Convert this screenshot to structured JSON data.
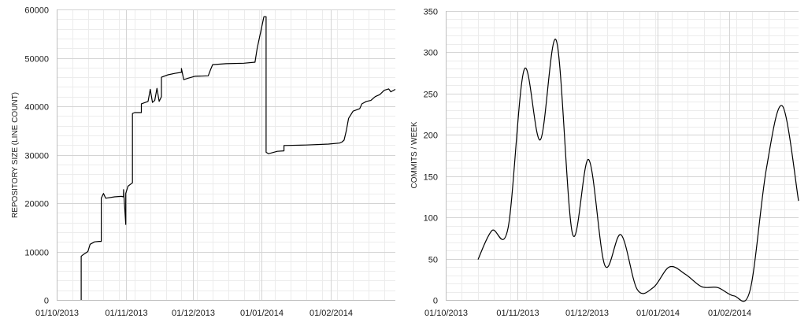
{
  "chart_data": [
    {
      "type": "line",
      "title": "",
      "xlabel": "",
      "ylabel": "REPOSITORY SIZE (LINE COUNT)",
      "ylim": [
        0,
        60000
      ],
      "yticks": [
        0,
        10000,
        20000,
        30000,
        40000,
        50000,
        60000
      ],
      "xlim": [
        "2013-10-01",
        "2014-03-02"
      ],
      "xticks": [
        "01/10/2013",
        "01/11/2013",
        "01/12/2013",
        "01/01/2014",
        "01/02/2014"
      ],
      "grid": true,
      "series": [
        {
          "color": "#000000",
          "points": [
            [
              "2013-10-12",
              0
            ],
            [
              "2013-10-12",
              9000
            ],
            [
              "2013-10-13",
              9400
            ],
            [
              "2013-10-15",
              10000
            ],
            [
              "2013-10-16",
              11500
            ],
            [
              "2013-10-18",
              12000
            ],
            [
              "2013-10-20",
              12100
            ],
            [
              "2013-10-21",
              12100
            ],
            [
              "2013-10-21",
              21000
            ],
            [
              "2013-10-22",
              22000
            ],
            [
              "2013-10-23",
              21000
            ],
            [
              "2013-10-27",
              21300
            ],
            [
              "2013-10-30",
              21400
            ],
            [
              "2013-10-31",
              21300
            ],
            [
              "2013-10-31",
              22800
            ],
            [
              "2013-11-01",
              15600
            ],
            [
              "2013-11-01",
              22000
            ],
            [
              "2013-11-02",
              23500
            ],
            [
              "2013-11-04",
              24200
            ],
            [
              "2013-11-04",
              38500
            ],
            [
              "2013-11-05",
              38700
            ],
            [
              "2013-11-08",
              38700
            ],
            [
              "2013-11-08",
              40500
            ],
            [
              "2013-11-11",
              41000
            ],
            [
              "2013-11-12",
              43500
            ],
            [
              "2013-11-13",
              40800
            ],
            [
              "2013-11-14",
              41200
            ],
            [
              "2013-11-15",
              43700
            ],
            [
              "2013-11-16",
              41000
            ],
            [
              "2013-11-17",
              42000
            ],
            [
              "2013-11-17",
              46000
            ],
            [
              "2013-11-20",
              46500
            ],
            [
              "2013-11-23",
              46800
            ],
            [
              "2013-11-26",
              47000
            ],
            [
              "2013-11-26",
              47800
            ],
            [
              "2013-11-27",
              45500
            ],
            [
              "2013-11-29",
              45800
            ],
            [
              "2013-12-02",
              46200
            ],
            [
              "2013-12-08",
              46300
            ],
            [
              "2013-12-09",
              47500
            ],
            [
              "2013-12-10",
              48600
            ],
            [
              "2013-12-16",
              48800
            ],
            [
              "2013-12-24",
              48900
            ],
            [
              "2013-12-29",
              49100
            ],
            [
              "2013-12-30",
              52000
            ],
            [
              "2014-01-02",
              58500
            ],
            [
              "2014-01-03",
              58500
            ],
            [
              "2014-01-03",
              30500
            ],
            [
              "2014-01-04",
              30200
            ],
            [
              "2014-01-08",
              30700
            ],
            [
              "2014-01-11",
              30800
            ],
            [
              "2014-01-11",
              31900
            ],
            [
              "2014-01-21",
              32000
            ],
            [
              "2014-01-31",
              32200
            ],
            [
              "2014-02-05",
              32400
            ],
            [
              "2014-02-06",
              32600
            ],
            [
              "2014-02-07",
              33000
            ],
            [
              "2014-02-08",
              35000
            ],
            [
              "2014-02-09",
              37500
            ],
            [
              "2014-02-11",
              39000
            ],
            [
              "2014-02-14",
              39500
            ],
            [
              "2014-02-15",
              40500
            ],
            [
              "2014-02-17",
              41000
            ],
            [
              "2014-02-19",
              41200
            ],
            [
              "2014-02-21",
              42000
            ],
            [
              "2014-02-23",
              42400
            ],
            [
              "2014-02-25",
              43300
            ],
            [
              "2014-02-27",
              43600
            ],
            [
              "2014-02-28",
              43000
            ],
            [
              "2014-03-02",
              43500
            ]
          ]
        }
      ]
    },
    {
      "type": "line",
      "title": "",
      "xlabel": "",
      "ylabel": "COMMITS / WEEK",
      "ylim": [
        0,
        350
      ],
      "yticks": [
        0,
        50,
        100,
        150,
        200,
        250,
        300,
        350
      ],
      "xlim": [
        "2013-10-01",
        "2014-03-03"
      ],
      "xticks": [
        "01/10/2013",
        "01/11/2013",
        "01/12/2013",
        "01/01/2014",
        "01/02/2014"
      ],
      "grid": true,
      "smooth": true,
      "series": [
        {
          "color": "#000000",
          "points": [
            [
              "2013-10-15",
              49
            ],
            [
              "2013-10-21",
              84
            ],
            [
              "2013-10-28",
              87
            ],
            [
              "2013-11-04",
              279
            ],
            [
              "2013-11-11",
              194
            ],
            [
              "2013-11-18",
              314
            ],
            [
              "2013-11-25",
              80
            ],
            [
              "2013-12-02",
              170
            ],
            [
              "2013-12-09",
              42
            ],
            [
              "2013-12-16",
              79
            ],
            [
              "2013-12-23",
              13
            ],
            [
              "2013-12-30",
              15
            ],
            [
              "2014-01-06",
              40
            ],
            [
              "2014-01-13",
              31
            ],
            [
              "2014-01-20",
              16
            ],
            [
              "2014-01-27",
              15
            ],
            [
              "2014-02-03",
              5
            ],
            [
              "2014-02-10",
              12
            ],
            [
              "2014-02-17",
              158
            ],
            [
              "2014-02-24",
              235
            ],
            [
              "2014-03-03",
              120
            ]
          ]
        }
      ]
    }
  ]
}
